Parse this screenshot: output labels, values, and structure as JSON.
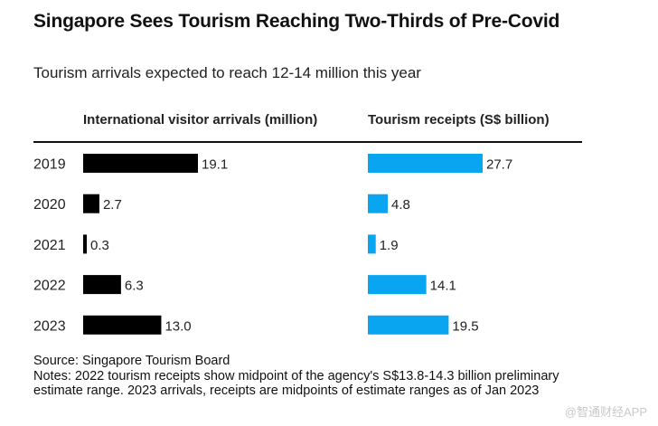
{
  "title": "Singapore Sees Tourism Reaching Two-Thirds of Pre-Covid",
  "subtitle": "Tourism arrivals expected to reach 12-14 million this year",
  "colors": {
    "arrivals": "#000000",
    "receipts": "#0aa5f0",
    "rule": "#111111"
  },
  "chart_data": {
    "type": "bar",
    "orientation": "horizontal",
    "categories": [
      "2019",
      "2020",
      "2021",
      "2022",
      "2023"
    ],
    "series": [
      {
        "name": "International visitor arrivals (million)",
        "values": [
          19.1,
          2.7,
          0.3,
          6.3,
          13.0
        ],
        "labels": [
          "19.1",
          "2.7",
          "0.3",
          "6.3",
          "13.0"
        ]
      },
      {
        "name": "Tourism receipts (S$ billion)",
        "values": [
          27.7,
          4.8,
          1.9,
          14.1,
          19.5
        ],
        "labels": [
          "27.7",
          "4.8",
          "1.9",
          "14.1",
          "19.5"
        ]
      }
    ]
  },
  "footer": {
    "source": "Source: Singapore Tourism Board",
    "notes": "Notes: 2022 tourism receipts show midpoint of the agency's S$13.8-14.3 billion preliminary estimate range. 2023 arrivals, receipts are midpoints of estimate ranges as of Jan 2023"
  },
  "watermark": "@智通财经APP"
}
